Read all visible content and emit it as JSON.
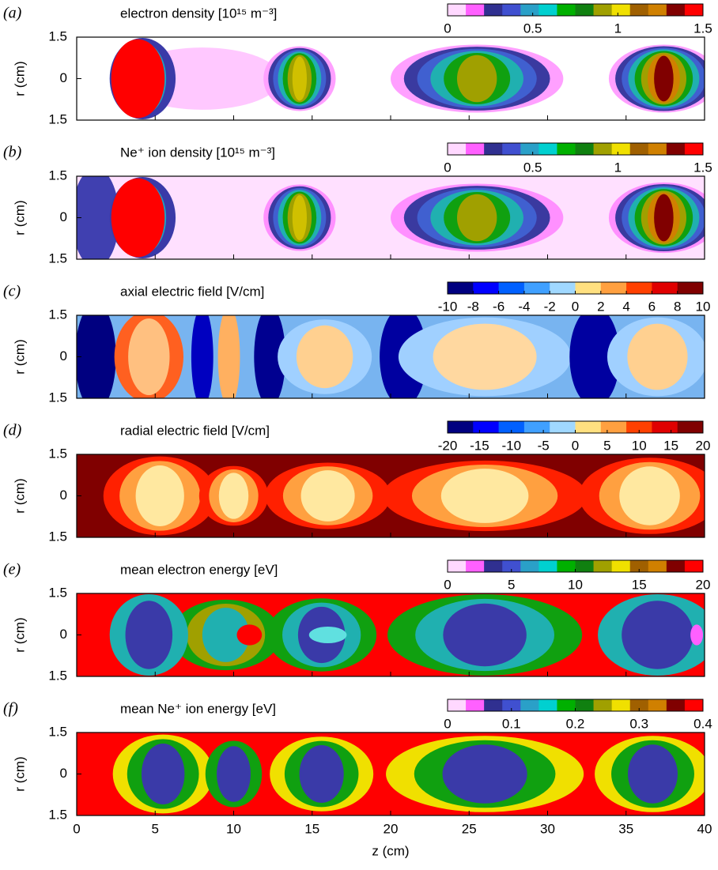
{
  "chart_data": [
    {
      "type": "heatmap",
      "panel": "(a)",
      "title": "electron density  [10¹⁵ m⁻³]",
      "ylabel": "r (cm)",
      "ylim": [
        -1.5,
        1.5
      ],
      "yticks": [
        1.5,
        0,
        {
          "value": -1.5,
          "label": "1.5"
        }
      ],
      "colorbar": {
        "lim": [
          0,
          1.5
        ],
        "ticks": [
          0,
          0.5,
          1,
          1.5
        ],
        "colors": [
          "#ffd8ff",
          "#ff60ff",
          "#303090",
          "#4050d0",
          "#2aa0c8",
          "#00d0d0",
          "#00b000",
          "#108010",
          "#a0a000",
          "#f0e000",
          "#a06000",
          "#d08000",
          "#800000",
          "#ff0000"
        ]
      }
    },
    {
      "type": "heatmap",
      "panel": "(b)",
      "title": "Ne⁺ ion density  [10¹⁵ m⁻³]",
      "ylabel": "r (cm)",
      "ylim": [
        -1.5,
        1.5
      ],
      "yticks": [
        1.5,
        0,
        {
          "value": -1.5,
          "label": "1.5"
        }
      ],
      "colorbar": {
        "lim": [
          0,
          1.5
        ],
        "ticks": [
          0,
          0.5,
          1,
          1.5
        ],
        "colors": [
          "#ffd8ff",
          "#ff60ff",
          "#303090",
          "#4050d0",
          "#2aa0c8",
          "#00d0d0",
          "#00b000",
          "#108010",
          "#a0a000",
          "#f0e000",
          "#a06000",
          "#d08000",
          "#800000",
          "#ff0000"
        ]
      }
    },
    {
      "type": "heatmap",
      "panel": "(c)",
      "title": "axial electric field  [V/cm]",
      "ylabel": "r (cm)",
      "ylim": [
        -1.5,
        1.5
      ],
      "yticks": [
        1.5,
        0,
        {
          "value": -1.5,
          "label": "1.5"
        }
      ],
      "colorbar": {
        "lim": [
          -10,
          10
        ],
        "ticks": [
          -10,
          -8,
          -6,
          -4,
          -2,
          0,
          2,
          4,
          6,
          8,
          10
        ],
        "colors": [
          "#000080",
          "#0000ff",
          "#0060ff",
          "#40a0ff",
          "#a0d8ff",
          "#ffe080",
          "#ffa040",
          "#ff4000",
          "#e00000",
          "#800000"
        ]
      }
    },
    {
      "type": "heatmap",
      "panel": "(d)",
      "title": "radial electric field  [V/cm]",
      "ylabel": "r (cm)",
      "ylim": [
        -1.5,
        1.5
      ],
      "yticks": [
        1.5,
        0,
        {
          "value": -1.5,
          "label": "1.5"
        }
      ],
      "colorbar": {
        "lim": [
          -20,
          20
        ],
        "ticks": [
          -20,
          -15,
          -10,
          -5,
          0,
          5,
          10,
          15,
          20
        ],
        "colors": [
          "#000080",
          "#0000ff",
          "#0060ff",
          "#40a0ff",
          "#a0d8ff",
          "#ffe080",
          "#ffa040",
          "#ff4000",
          "#e00000",
          "#800000"
        ]
      }
    },
    {
      "type": "heatmap",
      "panel": "(e)",
      "title": "mean electron energy  [eV]",
      "ylabel": "r (cm)",
      "ylim": [
        -1.5,
        1.5
      ],
      "yticks": [
        1.5,
        0,
        {
          "value": -1.5,
          "label": "1.5"
        }
      ],
      "colorbar": {
        "lim": [
          0,
          20
        ],
        "ticks": [
          0,
          5,
          10,
          15,
          20
        ],
        "colors": [
          "#ffd8ff",
          "#ff60ff",
          "#303090",
          "#4050d0",
          "#2aa0c8",
          "#00d0d0",
          "#00b000",
          "#108010",
          "#a0a000",
          "#f0e000",
          "#a06000",
          "#d08000",
          "#800000",
          "#ff0000"
        ]
      }
    },
    {
      "type": "heatmap",
      "panel": "(f)",
      "title": "mean Ne⁺ ion energy  [eV]",
      "ylabel": "r (cm)",
      "ylim": [
        -1.5,
        1.5
      ],
      "yticks": [
        1.5,
        0,
        {
          "value": -1.5,
          "label": "1.5"
        }
      ],
      "colorbar": {
        "lim": [
          0,
          0.4
        ],
        "ticks": [
          0,
          0.1,
          0.2,
          0.3,
          0.4
        ],
        "colors": [
          "#ffd8ff",
          "#ff60ff",
          "#303090",
          "#4050d0",
          "#2aa0c8",
          "#00d0d0",
          "#00b000",
          "#108010",
          "#a0a000",
          "#f0e000",
          "#a06000",
          "#d08000",
          "#800000",
          "#ff0000"
        ]
      },
      "xlabel": "z (cm)",
      "xlim": [
        0,
        40
      ],
      "xticks": [
        0,
        5,
        10,
        15,
        20,
        25,
        30,
        35,
        40
      ]
    }
  ]
}
